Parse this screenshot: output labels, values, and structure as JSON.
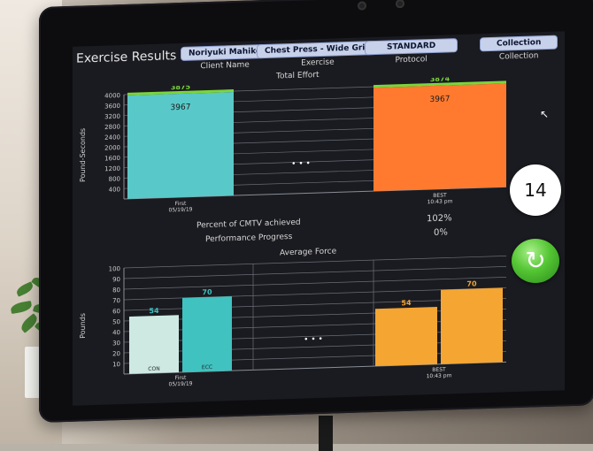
{
  "app": {
    "title": "Exercise Results"
  },
  "header": {
    "client": {
      "value": "Noriyuki Mahiko",
      "caption": "Client Name"
    },
    "exercise": {
      "value": "Chest Press - Wide Grip",
      "caption": "Exercise"
    },
    "protocol": {
      "value": "STANDARD",
      "caption": "Protocol"
    },
    "collection": {
      "value": "Collection",
      "caption": "Collection"
    }
  },
  "side": {
    "badge_value": "14",
    "refresh_icon": "refresh-icon"
  },
  "metrics": {
    "cmtv_label": "Percent of CMTV achieved",
    "cmtv_value": "102%",
    "progress_label": "Performance Progress",
    "progress_value": "0%"
  },
  "chart_data": [
    {
      "type": "bar",
      "title": "Total Effort",
      "ylabel": "Pound-Seconds",
      "ylim": [
        0,
        4000
      ],
      "yticks": [
        400,
        800,
        1200,
        1600,
        2000,
        2400,
        2800,
        3200,
        3600,
        4000
      ],
      "bars": [
        {
          "label": "First",
          "sublabel": "05/19/19",
          "value": 3967,
          "target": 3875,
          "color": "#59c8c8",
          "target_color": "#7bd63a"
        },
        {
          "label": "BEST",
          "sublabel": "10:43 pm",
          "value": 3967,
          "target": 3874,
          "color": "#ff7a2f",
          "target_color": "#7bd63a"
        }
      ],
      "gap_marker": "• • •"
    },
    {
      "type": "bar",
      "title": "Average Force",
      "ylabel": "Pounds",
      "ylim": [
        0,
        100
      ],
      "yticks": [
        10,
        20,
        30,
        40,
        50,
        60,
        70,
        80,
        90,
        100
      ],
      "groups": [
        {
          "label": "First",
          "sublabel": "05/19/19",
          "bars": [
            {
              "name": "CON",
              "value": 54,
              "color": "#cde9e2"
            },
            {
              "name": "ECC",
              "value": 70,
              "color": "#3fc2c0"
            }
          ]
        },
        {
          "label": "BEST",
          "sublabel": "10:43 pm",
          "bars": [
            {
              "name": "",
              "value": 54,
              "color": "#f4a532"
            },
            {
              "name": "",
              "value": 70,
              "color": "#f4a532"
            }
          ]
        }
      ],
      "gap_marker": "• • •"
    }
  ]
}
